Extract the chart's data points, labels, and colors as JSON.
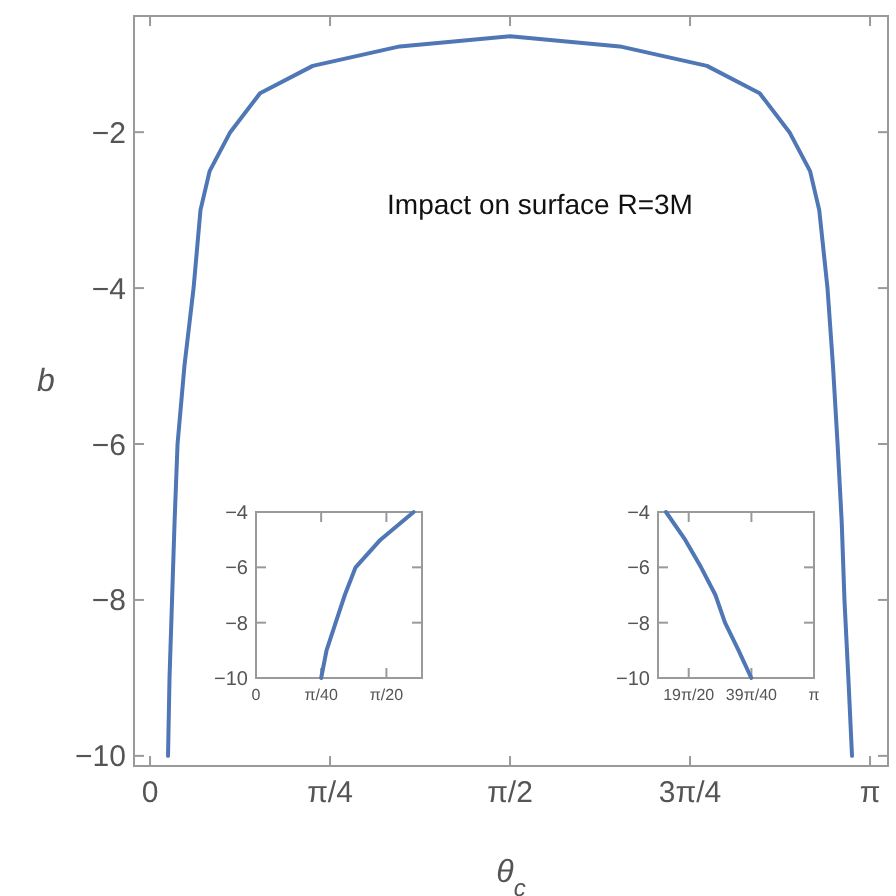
{
  "chart_data": [
    {
      "type": "line",
      "xlabel": "θ$_{c}$",
      "ylabel": "b",
      "annotations": [
        "Impact on surface R=3M"
      ],
      "xlim": [
        -0.07,
        3.22
      ],
      "ylim": [
        -10.13,
        -0.51
      ],
      "xticks": [
        0,
        {
          "value": 0.7854,
          "label": "π/4"
        },
        {
          "value": 1.5708,
          "label": "π/2"
        },
        {
          "value": 2.3562,
          "label": "3π/4"
        },
        {
          "value": 3.1416,
          "label": "π"
        }
      ],
      "yticks": [
        -2,
        -4,
        -6,
        -8,
        -10
      ],
      "grid": false,
      "series": [
        {
          "color": "#4f76b5",
          "x": [
            0.0785,
            0.085,
            0.096,
            0.107,
            0.12,
            0.15,
            0.19,
            0.22,
            0.26,
            0.35,
            0.48,
            0.71,
            1.09,
            1.571,
            2.05,
            2.43,
            2.66,
            2.79,
            2.88,
            2.92,
            2.956,
            2.98,
            3.0,
            3.018,
            3.03,
            3.047,
            3.063
          ],
          "values": [
            -10,
            -9,
            -8,
            -7,
            -6,
            -5,
            -4,
            -3,
            -2.5,
            -2,
            -1.5,
            -1.15,
            -0.9,
            -0.77,
            -0.9,
            -1.15,
            -1.5,
            -2,
            -2.5,
            -3,
            -4,
            -5,
            -6,
            -7,
            -8,
            -9,
            -10
          ]
        }
      ]
    },
    {
      "type": "line",
      "xlim": [
        0,
        0.2
      ],
      "ylim": [
        -10,
        -4
      ],
      "xticks": [
        0,
        {
          "value": 0.0785,
          "label": "π/40"
        },
        {
          "value": 0.1571,
          "label": "π/20"
        }
      ],
      "yticks": [
        -4,
        -6,
        -8,
        -10
      ],
      "grid": false,
      "series": [
        {
          "color": "#4f76b5",
          "x": [
            0.0785,
            0.085,
            0.096,
            0.107,
            0.12,
            0.15,
            0.19
          ],
          "values": [
            -10,
            -9,
            -8,
            -7,
            -6,
            -5,
            -4
          ]
        }
      ]
    },
    {
      "type": "line",
      "xlim": [
        2.946,
        3.1416
      ],
      "ylim": [
        -10,
        -4
      ],
      "xticks": [
        {
          "value": 2.9845,
          "label": "19π/20"
        },
        {
          "value": 3.0631,
          "label": "39π/40"
        },
        {
          "value": 3.1416,
          "label": "π"
        }
      ],
      "yticks": [
        -4,
        -6,
        -8,
        -10
      ],
      "grid": false,
      "series": [
        {
          "color": "#4f76b5",
          "x": [
            2.956,
            2.98,
            3.0,
            3.018,
            3.03,
            3.047,
            3.063
          ],
          "values": [
            -4,
            -5,
            -6,
            -7,
            -8,
            -9,
            -10
          ]
        }
      ]
    }
  ]
}
